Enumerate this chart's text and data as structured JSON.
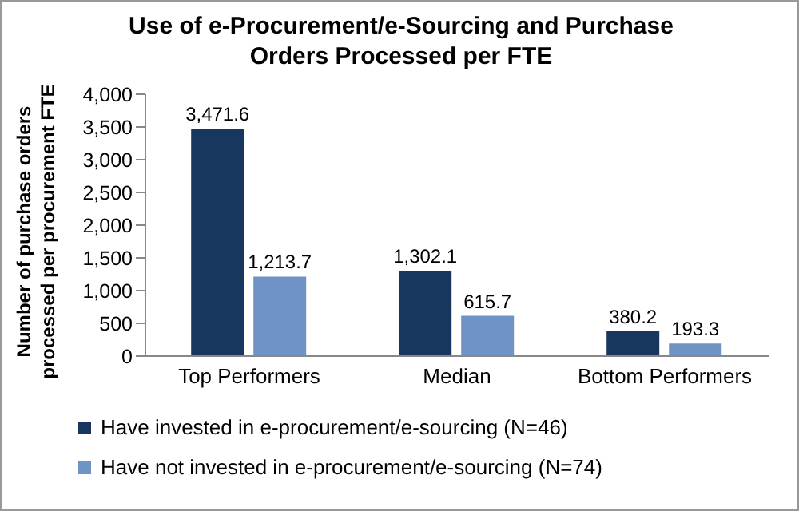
{
  "chart_data": {
    "type": "bar",
    "title": "Use of e-Procurement/e-Sourcing and Purchase Orders Processed per FTE",
    "ylabel": "Number of purchase orders processed per procurement FTE",
    "categories": [
      "Top Performers",
      "Median",
      "Bottom Performers"
    ],
    "series": [
      {
        "name": "Have invested in e-procurement/e-sourcing (N=46)",
        "color": "#17375e",
        "values": [
          3471.6,
          1302.1,
          380.2
        ],
        "value_labels": [
          "3,471.6",
          "1,302.1",
          "380.2"
        ]
      },
      {
        "name": "Have not invested in e-procurement/e-sourcing (N=74)",
        "color": "#7093c5",
        "values": [
          1213.7,
          615.7,
          193.3
        ],
        "value_labels": [
          "1,213.7",
          "615.7",
          "193.3"
        ]
      }
    ],
    "ylim": [
      0,
      4000
    ],
    "yticks": [
      0,
      500,
      {
        "value": 1000,
        "label": "1,000"
      },
      {
        "value": 1500,
        "label": "1,500"
      },
      {
        "value": 2000,
        "label": "2,000"
      },
      {
        "value": 2500,
        "label": "2,500"
      },
      {
        "value": 3000,
        "label": "3,000"
      },
      {
        "value": 3500,
        "label": "3,500"
      },
      {
        "value": 4000,
        "label": "4,000"
      }
    ],
    "grid": false,
    "legend": "bottom"
  }
}
